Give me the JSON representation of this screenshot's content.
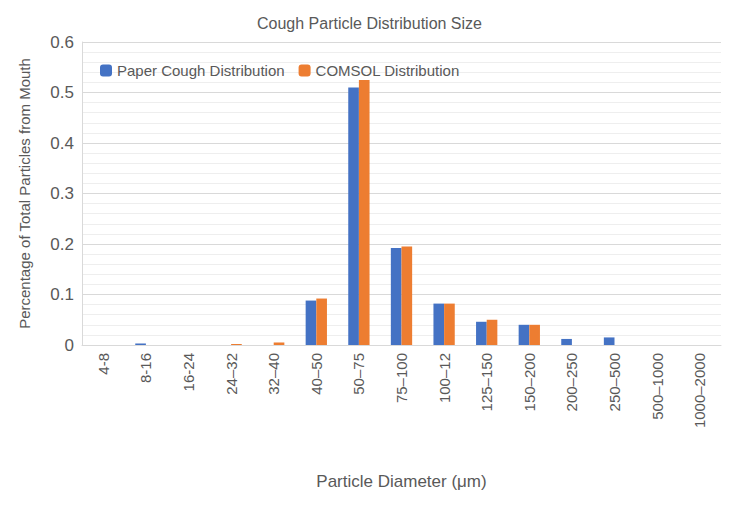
{
  "chart_data": {
    "type": "bar",
    "title": "Cough Particle Distribution Size",
    "x_label": "Particle Diameter (μm)",
    "y_label": "Percentage of Total Particles from Mouth",
    "categories": [
      "4-8",
      "8-16",
      "16-24",
      "24–32",
      "32–40",
      "40–50",
      "50–75",
      "75–100",
      "100–12",
      "125–150",
      "150–200",
      "200–250",
      "250–500",
      "500–1000",
      "1000–2000"
    ],
    "series": [
      {
        "name": "Paper Cough Distribution",
        "color": "#4472c4",
        "values": [
          0,
          0.003,
          0,
          0,
          0,
          0.088,
          0.51,
          0.192,
          0.082,
          0.046,
          0.04,
          0.012,
          0.015,
          0,
          0
        ]
      },
      {
        "name": "COMSOL Distribution",
        "color": "#ed7d31",
        "values": [
          0,
          0,
          0,
          0.002,
          0.005,
          0.092,
          0.525,
          0.195,
          0.082,
          0.05,
          0.04,
          0,
          0,
          0,
          0
        ]
      }
    ],
    "ylim": [
      0,
      0.6
    ],
    "yticks": [
      0,
      0.1,
      0.2,
      0.3,
      0.4,
      0.5,
      0.6
    ],
    "grid": true,
    "legend": "top-left"
  }
}
